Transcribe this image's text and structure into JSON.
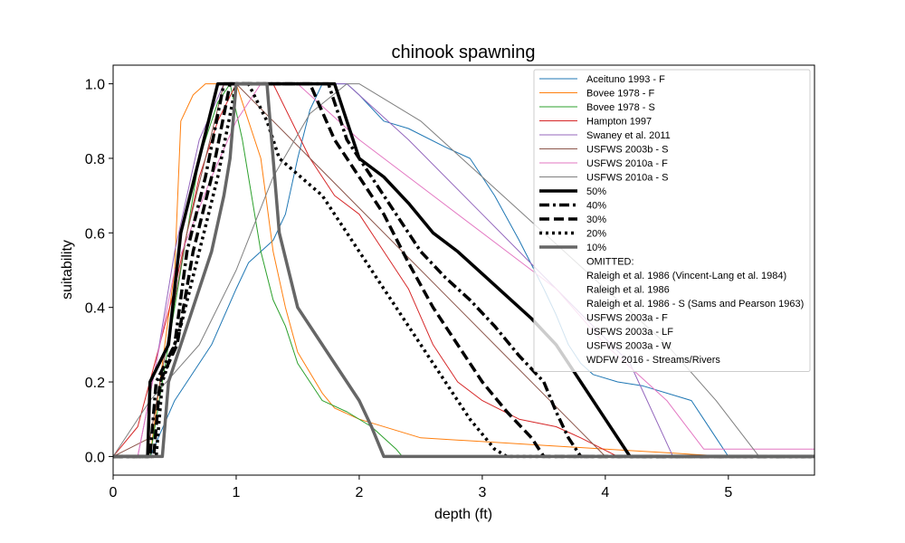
{
  "chart_data": {
    "type": "line",
    "title": "chinook spawning",
    "xlabel": "depth (ft)",
    "ylabel": "suitability",
    "xlim": [
      0,
      5.7
    ],
    "ylim": [
      -0.05,
      1.05
    ],
    "xticks": [
      0,
      1,
      2,
      3,
      4,
      5
    ],
    "xtick_labels": [
      "0",
      "1",
      "2",
      "3",
      "4",
      "5"
    ],
    "yticks": [
      0.0,
      0.2,
      0.4,
      0.6,
      0.8,
      1.0
    ],
    "ytick_labels": [
      "0.0",
      "0.2",
      "0.4",
      "0.6",
      "0.8",
      "1.0"
    ],
    "grid": false,
    "legend_position": "top-right",
    "series": [
      {
        "name": "Aceituno 1993 - F",
        "color": "#1f77b4",
        "width": 1,
        "dash": "solid",
        "points": [
          [
            0,
            0
          ],
          [
            0.3,
            0
          ],
          [
            0.5,
            0.15
          ],
          [
            0.8,
            0.3
          ],
          [
            1.0,
            0.45
          ],
          [
            1.1,
            0.52
          ],
          [
            1.3,
            0.58
          ],
          [
            1.4,
            0.65
          ],
          [
            1.5,
            0.8
          ],
          [
            1.6,
            0.93
          ],
          [
            1.7,
            1.0
          ],
          [
            1.9,
            1.0
          ],
          [
            2.0,
            0.97
          ],
          [
            2.2,
            0.9
          ],
          [
            2.4,
            0.88
          ],
          [
            2.7,
            0.83
          ],
          [
            2.9,
            0.8
          ],
          [
            3.0,
            0.75
          ],
          [
            3.1,
            0.7
          ],
          [
            3.3,
            0.58
          ],
          [
            3.5,
            0.45
          ],
          [
            3.6,
            0.38
          ],
          [
            3.7,
            0.3
          ],
          [
            3.8,
            0.25
          ],
          [
            3.9,
            0.22
          ],
          [
            4.1,
            0.2
          ],
          [
            4.3,
            0.19
          ],
          [
            4.6,
            0.16
          ],
          [
            4.7,
            0.15
          ],
          [
            4.8,
            0.1
          ],
          [
            4.9,
            0.05
          ],
          [
            5.0,
            0.0
          ],
          [
            5.7,
            0.0
          ]
        ]
      },
      {
        "name": "Bovee 1978 - F",
        "color": "#ff7f0e",
        "width": 1,
        "dash": "solid",
        "points": [
          [
            0,
            0
          ],
          [
            0.3,
            0
          ],
          [
            0.5,
            0.5
          ],
          [
            0.55,
            0.9
          ],
          [
            0.65,
            0.97
          ],
          [
            0.75,
            1.0
          ],
          [
            1.0,
            1.0
          ],
          [
            1.05,
            0.95
          ],
          [
            1.2,
            0.8
          ],
          [
            1.3,
            0.55
          ],
          [
            1.4,
            0.4
          ],
          [
            1.5,
            0.28
          ],
          [
            1.7,
            0.17
          ],
          [
            1.8,
            0.13
          ],
          [
            2.0,
            0.1
          ],
          [
            2.5,
            0.05
          ],
          [
            3.0,
            0.04
          ],
          [
            3.5,
            0.03
          ],
          [
            4.0,
            0.02
          ],
          [
            4.5,
            0.01
          ],
          [
            5.0,
            0.0
          ],
          [
            5.7,
            0.0
          ]
        ]
      },
      {
        "name": "Bovee 1978 - S",
        "color": "#2ca02c",
        "width": 1,
        "dash": "solid",
        "points": [
          [
            0,
            0
          ],
          [
            0.3,
            0
          ],
          [
            0.5,
            0.4
          ],
          [
            0.7,
            0.8
          ],
          [
            0.85,
            0.95
          ],
          [
            0.95,
            1.0
          ],
          [
            1.05,
            0.85
          ],
          [
            1.2,
            0.55
          ],
          [
            1.3,
            0.42
          ],
          [
            1.4,
            0.35
          ],
          [
            1.5,
            0.25
          ],
          [
            1.7,
            0.15
          ],
          [
            1.9,
            0.12
          ],
          [
            2.1,
            0.08
          ],
          [
            2.3,
            0.02
          ],
          [
            2.35,
            0.0
          ],
          [
            5.7,
            0.0
          ]
        ]
      },
      {
        "name": "Hampton 1997",
        "color": "#d62728",
        "width": 1,
        "dash": "solid",
        "points": [
          [
            0,
            0
          ],
          [
            0.2,
            0.08
          ],
          [
            0.5,
            0.45
          ],
          [
            0.7,
            0.75
          ],
          [
            0.85,
            0.9
          ],
          [
            1.0,
            1.0
          ],
          [
            1.3,
            1.0
          ],
          [
            1.6,
            0.8
          ],
          [
            1.8,
            0.7
          ],
          [
            2.0,
            0.65
          ],
          [
            2.2,
            0.55
          ],
          [
            2.4,
            0.45
          ],
          [
            2.6,
            0.3
          ],
          [
            2.8,
            0.2
          ],
          [
            3.0,
            0.15
          ],
          [
            3.3,
            0.1
          ],
          [
            3.6,
            0.08
          ],
          [
            3.8,
            0.05
          ],
          [
            4.1,
            0.0
          ],
          [
            5.7,
            0.0
          ]
        ]
      },
      {
        "name": "Swaney et al. 2011",
        "color": "#9467bd",
        "width": 1,
        "dash": "solid",
        "points": [
          [
            0,
            0
          ],
          [
            0.2,
            0
          ],
          [
            0.35,
            0.25
          ],
          [
            0.5,
            0.55
          ],
          [
            0.7,
            0.85
          ],
          [
            0.9,
            1.0
          ],
          [
            1.0,
            1.0
          ],
          [
            1.9,
            1.0
          ],
          [
            2.4,
            0.85
          ],
          [
            3.0,
            0.65
          ],
          [
            3.6,
            0.45
          ],
          [
            4.2,
            0.25
          ],
          [
            4.55,
            0.0
          ],
          [
            5.7,
            0.0
          ]
        ]
      },
      {
        "name": "USFWS 2003b - S",
        "color": "#8c564b",
        "width": 1,
        "dash": "solid",
        "points": [
          [
            0,
            0
          ],
          [
            0.3,
            0.05
          ],
          [
            0.6,
            0.6
          ],
          [
            0.9,
            1.0
          ],
          [
            1.0,
            1.0
          ],
          [
            4.0,
            0.0
          ],
          [
            5.7,
            0.0
          ]
        ]
      },
      {
        "name": "USFWS 2010a - F",
        "color": "#e377c2",
        "width": 1,
        "dash": "solid",
        "points": [
          [
            0,
            0
          ],
          [
            0.2,
            0
          ],
          [
            0.5,
            0.5
          ],
          [
            0.8,
            0.75
          ],
          [
            1.0,
            0.9
          ],
          [
            1.2,
            1.0
          ],
          [
            1.5,
            1.0
          ],
          [
            2.0,
            0.85
          ],
          [
            2.6,
            0.7
          ],
          [
            3.2,
            0.55
          ],
          [
            3.6,
            0.45
          ],
          [
            4.0,
            0.3
          ],
          [
            4.5,
            0.15
          ],
          [
            4.8,
            0.02
          ],
          [
            5.7,
            0.02
          ]
        ]
      },
      {
        "name": "USFWS 2010a - S",
        "color": "#7f7f7f",
        "width": 1,
        "dash": "solid",
        "points": [
          [
            0,
            0
          ],
          [
            0.3,
            0.15
          ],
          [
            0.7,
            0.3
          ],
          [
            1.0,
            0.5
          ],
          [
            1.3,
            0.75
          ],
          [
            1.6,
            0.92
          ],
          [
            1.9,
            1.0
          ],
          [
            2.0,
            1.0
          ],
          [
            2.5,
            0.9
          ],
          [
            3.0,
            0.75
          ],
          [
            3.5,
            0.6
          ],
          [
            4.0,
            0.45
          ],
          [
            4.5,
            0.3
          ],
          [
            4.9,
            0.15
          ],
          [
            5.25,
            0.0
          ],
          [
            5.7,
            0.0
          ]
        ]
      },
      {
        "name": "50%",
        "color": "#000000",
        "width": 3.5,
        "dash": "solid",
        "points": [
          [
            0,
            0
          ],
          [
            0.28,
            0
          ],
          [
            0.3,
            0.2
          ],
          [
            0.45,
            0.3
          ],
          [
            0.55,
            0.6
          ],
          [
            0.7,
            0.8
          ],
          [
            0.85,
            1.0
          ],
          [
            1.8,
            1.0
          ],
          [
            1.9,
            0.9
          ],
          [
            2.0,
            0.8
          ],
          [
            2.2,
            0.75
          ],
          [
            2.4,
            0.68
          ],
          [
            2.6,
            0.6
          ],
          [
            2.8,
            0.55
          ],
          [
            3.0,
            0.49
          ],
          [
            3.2,
            0.43
          ],
          [
            3.4,
            0.37
          ],
          [
            3.6,
            0.3
          ],
          [
            3.8,
            0.2
          ],
          [
            4.0,
            0.1
          ],
          [
            4.2,
            0.0
          ],
          [
            5.7,
            0.0
          ]
        ]
      },
      {
        "name": "40%",
        "color": "#000000",
        "width": 3.5,
        "dash": "dashdot",
        "points": [
          [
            0,
            0
          ],
          [
            0.3,
            0
          ],
          [
            0.35,
            0.2
          ],
          [
            0.5,
            0.3
          ],
          [
            0.6,
            0.55
          ],
          [
            0.75,
            0.75
          ],
          [
            0.9,
            1.0
          ],
          [
            1.75,
            1.0
          ],
          [
            1.9,
            0.85
          ],
          [
            2.1,
            0.75
          ],
          [
            2.3,
            0.65
          ],
          [
            2.5,
            0.55
          ],
          [
            2.7,
            0.48
          ],
          [
            2.9,
            0.42
          ],
          [
            3.1,
            0.35
          ],
          [
            3.3,
            0.27
          ],
          [
            3.5,
            0.2
          ],
          [
            3.6,
            0.12
          ],
          [
            3.7,
            0.05
          ],
          [
            3.8,
            0.0
          ],
          [
            5.7,
            0.0
          ]
        ]
      },
      {
        "name": "30%",
        "color": "#000000",
        "width": 3.5,
        "dash": "dashed",
        "points": [
          [
            0,
            0
          ],
          [
            0.33,
            0
          ],
          [
            0.38,
            0.2
          ],
          [
            0.52,
            0.3
          ],
          [
            0.65,
            0.55
          ],
          [
            0.8,
            0.75
          ],
          [
            0.95,
            1.0
          ],
          [
            1.6,
            1.0
          ],
          [
            1.8,
            0.85
          ],
          [
            2.0,
            0.75
          ],
          [
            2.2,
            0.65
          ],
          [
            2.4,
            0.52
          ],
          [
            2.6,
            0.4
          ],
          [
            2.8,
            0.3
          ],
          [
            3.0,
            0.2
          ],
          [
            3.2,
            0.12
          ],
          [
            3.4,
            0.05
          ],
          [
            3.5,
            0.0
          ],
          [
            5.7,
            0.0
          ]
        ]
      },
      {
        "name": "20%",
        "color": "#000000",
        "width": 3.5,
        "dash": "dotted",
        "points": [
          [
            0,
            0
          ],
          [
            0.35,
            0
          ],
          [
            0.4,
            0.2
          ],
          [
            0.55,
            0.35
          ],
          [
            0.7,
            0.55
          ],
          [
            0.85,
            0.75
          ],
          [
            1.0,
            1.0
          ],
          [
            1.1,
            1.0
          ],
          [
            1.25,
            0.9
          ],
          [
            1.35,
            0.8
          ],
          [
            1.7,
            0.7
          ],
          [
            1.9,
            0.6
          ],
          [
            2.1,
            0.5
          ],
          [
            2.3,
            0.4
          ],
          [
            2.5,
            0.3
          ],
          [
            2.7,
            0.2
          ],
          [
            2.9,
            0.1
          ],
          [
            3.1,
            0.02
          ],
          [
            3.2,
            0.0
          ],
          [
            5.7,
            0.0
          ]
        ]
      },
      {
        "name": "10%",
        "color": "#666666",
        "width": 3.5,
        "dash": "solid",
        "points": [
          [
            0,
            0
          ],
          [
            0.4,
            0
          ],
          [
            0.45,
            0.2
          ],
          [
            0.6,
            0.35
          ],
          [
            0.7,
            0.45
          ],
          [
            0.8,
            0.55
          ],
          [
            0.9,
            0.7
          ],
          [
            0.95,
            0.8
          ],
          [
            1.0,
            1.0
          ],
          [
            1.25,
            1.0
          ],
          [
            1.3,
            0.8
          ],
          [
            1.35,
            0.6
          ],
          [
            1.5,
            0.4
          ],
          [
            1.7,
            0.3
          ],
          [
            1.8,
            0.25
          ],
          [
            2.0,
            0.15
          ],
          [
            2.1,
            0.08
          ],
          [
            2.2,
            0.0
          ],
          [
            5.7,
            0.0
          ]
        ]
      }
    ],
    "legend_omitted_header": "OMITTED:",
    "legend_omitted": [
      "Raleigh et al. 1986 (Vincent-Lang et al. 1984)",
      "Raleigh et al. 1986",
      "Raleigh et al. 1986 - S (Sams and Pearson 1963)",
      "USFWS 2003a - F",
      "USFWS 2003a - LF",
      "USFWS 2003a - W",
      "WDFW 2016 - Streams/Rivers"
    ]
  }
}
